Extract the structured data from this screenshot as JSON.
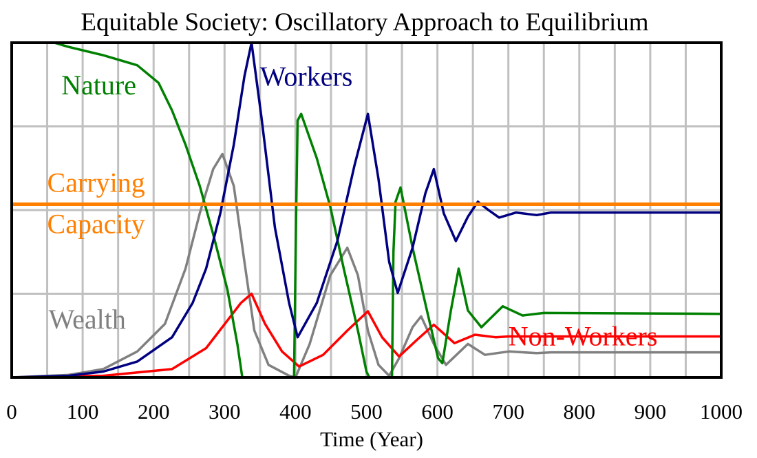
{
  "chart_data": {
    "type": "line",
    "title": "Equitable Society: Oscillatory Approach to Equilibrium",
    "xlabel": "Time (Year)",
    "ylabel": "",
    "xlim": [
      0,
      1000
    ],
    "ylim": [
      0,
      4
    ],
    "xticks": [
      "0",
      "100",
      "200",
      "300",
      "400",
      "500",
      "600",
      "700",
      "800",
      "900",
      "1000"
    ],
    "grid": true,
    "legend": "inline labels",
    "series": [
      {
        "name": "Nature",
        "color": "#008000",
        "label_pos": [
          70,
          3.5
        ],
        "points": [
          [
            0,
            4
          ],
          [
            60,
            4
          ],
          [
            80,
            3.95
          ],
          [
            129,
            3.85
          ],
          [
            177,
            3.73
          ],
          [
            207,
            3.52
          ],
          [
            226,
            3.19
          ],
          [
            245,
            2.78
          ],
          [
            265,
            2.29
          ],
          [
            284,
            1.71
          ],
          [
            304,
            1.05
          ],
          [
            318,
            0.4
          ],
          [
            325,
            0
          ],
          [
            398,
            0
          ],
          [
            401,
            2.0
          ],
          [
            403,
            3.07
          ],
          [
            408,
            3.15
          ],
          [
            430,
            2.62
          ],
          [
            449,
            2.04
          ],
          [
            468,
            1.3
          ],
          [
            488,
            0.56
          ],
          [
            500,
            0.07
          ],
          [
            504,
            0
          ],
          [
            536,
            0
          ],
          [
            538,
            1.5
          ],
          [
            541,
            2.1
          ],
          [
            548,
            2.27
          ],
          [
            565,
            1.55
          ],
          [
            585,
            0.81
          ],
          [
            601,
            0.23
          ],
          [
            607,
            0.17
          ],
          [
            619,
            0.8
          ],
          [
            630,
            1.3
          ],
          [
            643,
            0.8
          ],
          [
            662,
            0.6
          ],
          [
            692,
            0.85
          ],
          [
            720,
            0.74
          ],
          [
            750,
            0.77
          ],
          [
            1000,
            0.76
          ]
        ]
      },
      {
        "name": "Workers",
        "color": "#000080",
        "label_pos": [
          350,
          3.6
        ],
        "points": [
          [
            0,
            0
          ],
          [
            80,
            0.02
          ],
          [
            129,
            0.07
          ],
          [
            177,
            0.19
          ],
          [
            226,
            0.48
          ],
          [
            255,
            0.89
          ],
          [
            274,
            1.3
          ],
          [
            294,
            1.96
          ],
          [
            313,
            2.78
          ],
          [
            328,
            3.6
          ],
          [
            338,
            4.0
          ],
          [
            352,
            3.11
          ],
          [
            371,
            1.79
          ],
          [
            391,
            0.89
          ],
          [
            403,
            0.48
          ],
          [
            430,
            0.89
          ],
          [
            459,
            1.63
          ],
          [
            483,
            2.53
          ],
          [
            502,
            3.15
          ],
          [
            517,
            2.37
          ],
          [
            532,
            1.38
          ],
          [
            544,
            1.01
          ],
          [
            565,
            1.55
          ],
          [
            583,
            2.2
          ],
          [
            595,
            2.49
          ],
          [
            609,
            1.96
          ],
          [
            626,
            1.63
          ],
          [
            643,
            1.92
          ],
          [
            657,
            2.1
          ],
          [
            672,
            2.0
          ],
          [
            687,
            1.91
          ],
          [
            711,
            1.97
          ],
          [
            740,
            1.94
          ],
          [
            760,
            1.97
          ],
          [
            1000,
            1.97
          ]
        ]
      },
      {
        "name": "Carrying\nCapacity",
        "color": "#ff8000",
        "label_lines": [
          "Carrying",
          "Capacity"
        ],
        "label_pos": [
          50,
          2.07
        ],
        "points": [
          [
            0,
            2.07
          ],
          [
            1000,
            2.07
          ]
        ]
      },
      {
        "name": "Wealth",
        "color": "#808080",
        "label_pos": [
          52,
          0.7
        ],
        "points": [
          [
            0,
            0
          ],
          [
            80,
            0.03
          ],
          [
            129,
            0.1
          ],
          [
            177,
            0.31
          ],
          [
            216,
            0.64
          ],
          [
            245,
            1.3
          ],
          [
            265,
            1.96
          ],
          [
            284,
            2.49
          ],
          [
            297,
            2.67
          ],
          [
            313,
            2.29
          ],
          [
            328,
            1.38
          ],
          [
            342,
            0.56
          ],
          [
            362,
            0.15
          ],
          [
            391,
            0.02
          ],
          [
            400,
            0
          ],
          [
            420,
            0.4
          ],
          [
            449,
            1.22
          ],
          [
            473,
            1.55
          ],
          [
            488,
            1.22
          ],
          [
            502,
            0.56
          ],
          [
            517,
            0.15
          ],
          [
            532,
            0.02
          ],
          [
            546,
            0.23
          ],
          [
            565,
            0.6
          ],
          [
            577,
            0.73
          ],
          [
            595,
            0.4
          ],
          [
            612,
            0.15
          ],
          [
            643,
            0.4
          ],
          [
            667,
            0.27
          ],
          [
            701,
            0.31
          ],
          [
            740,
            0.29
          ],
          [
            760,
            0.3
          ],
          [
            1000,
            0.3
          ]
        ]
      },
      {
        "name": "Non-Workers",
        "color": "#ff0000",
        "label_pos": [
          700,
          0.5
        ],
        "points": [
          [
            0,
            0
          ],
          [
            129,
            0.02
          ],
          [
            226,
            0.1
          ],
          [
            274,
            0.35
          ],
          [
            304,
            0.68
          ],
          [
            323,
            0.89
          ],
          [
            338,
            1.0
          ],
          [
            357,
            0.64
          ],
          [
            381,
            0.31
          ],
          [
            405,
            0.13
          ],
          [
            439,
            0.27
          ],
          [
            473,
            0.56
          ],
          [
            502,
            0.79
          ],
          [
            522,
            0.48
          ],
          [
            546,
            0.25
          ],
          [
            570,
            0.44
          ],
          [
            595,
            0.63
          ],
          [
            624,
            0.41
          ],
          [
            653,
            0.51
          ],
          [
            682,
            0.48
          ],
          [
            700,
            0.49
          ],
          [
            1000,
            0.49
          ]
        ]
      }
    ]
  }
}
